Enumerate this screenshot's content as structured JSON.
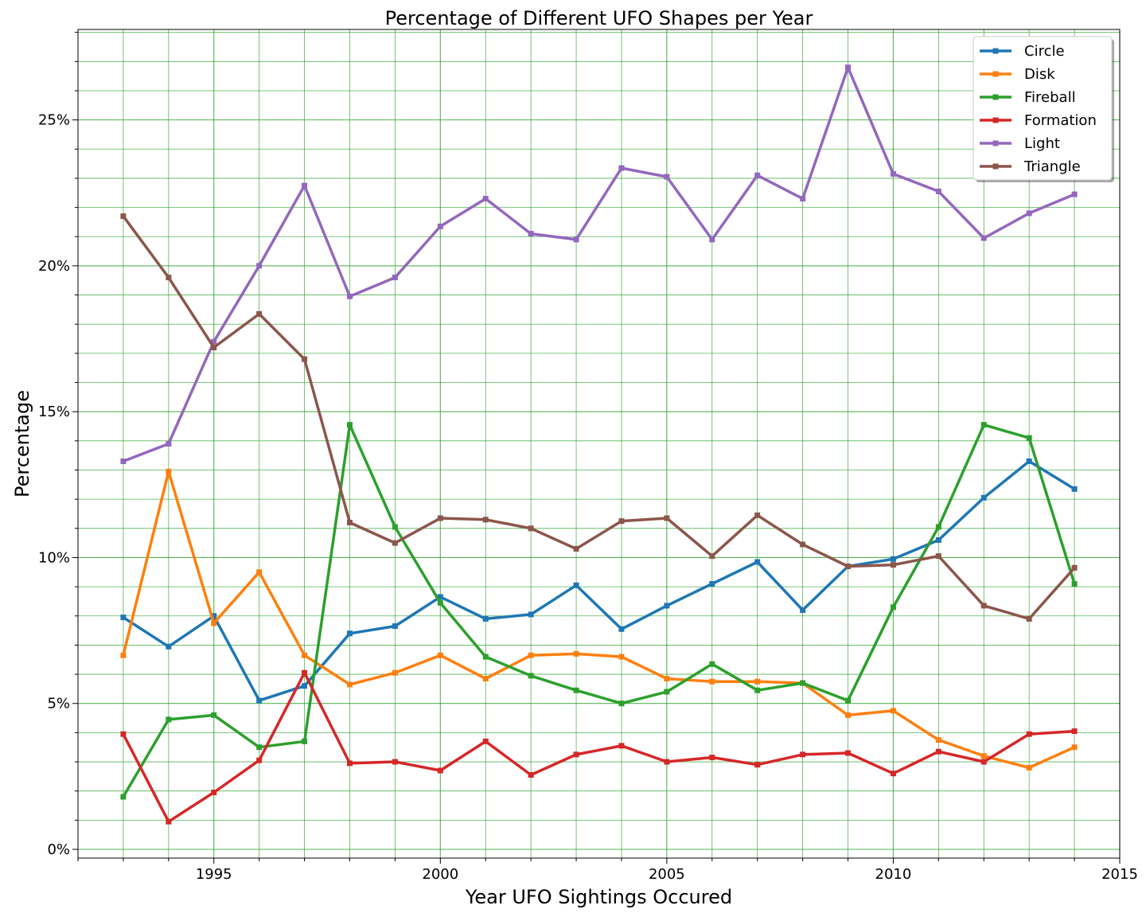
{
  "chart_data": {
    "type": "line",
    "title": "Percentage of Different UFO Shapes per Year",
    "xlabel": "Year UFO Sightings Occured",
    "ylabel": "Percentage",
    "xlim": [
      1992,
      2015
    ],
    "ylim": [
      -0.3,
      28.1
    ],
    "x_ticks": [
      1995,
      2000,
      2005,
      2010,
      2015
    ],
    "x_tick_labels": [
      "1995",
      "2000",
      "2005",
      "2010",
      "2015"
    ],
    "y_ticks": [
      0,
      5,
      10,
      15,
      20,
      25
    ],
    "y_tick_labels": [
      "0%",
      "5%",
      "10%",
      "15%",
      "20%",
      "25%"
    ],
    "grid": true,
    "grid_color": "#2ca02c",
    "legend_position": "top-right",
    "x": [
      1993,
      1994,
      1995,
      1996,
      1997,
      1998,
      1999,
      2000,
      2001,
      2002,
      2003,
      2004,
      2005,
      2006,
      2007,
      2008,
      2009,
      2010,
      2011,
      2012,
      2013,
      2014
    ],
    "series": [
      {
        "name": "Circle",
        "color": "#1f77b4",
        "values": [
          7.95,
          6.95,
          8.0,
          5.1,
          5.6,
          7.4,
          7.65,
          8.65,
          7.9,
          8.05,
          9.05,
          7.55,
          8.35,
          9.1,
          9.85,
          8.2,
          9.7,
          9.95,
          10.6,
          12.05,
          13.3,
          12.35
        ]
      },
      {
        "name": "Disk",
        "color": "#ff7f0e",
        "values": [
          6.65,
          12.95,
          7.75,
          9.5,
          6.65,
          5.65,
          6.05,
          6.65,
          5.85,
          6.65,
          6.7,
          6.6,
          5.85,
          5.75,
          5.75,
          5.7,
          4.6,
          4.75,
          3.75,
          3.2,
          2.8,
          3.5
        ]
      },
      {
        "name": "Fireball",
        "color": "#2ca02c",
        "values": [
          1.8,
          4.45,
          4.6,
          3.5,
          3.7,
          14.55,
          11.05,
          8.45,
          6.6,
          5.95,
          5.45,
          5.0,
          5.4,
          6.35,
          5.45,
          5.7,
          5.1,
          8.3,
          11.05,
          14.55,
          14.1,
          9.1
        ]
      },
      {
        "name": "Formation",
        "color": "#d62728",
        "values": [
          3.95,
          0.95,
          1.95,
          3.05,
          6.05,
          2.95,
          3.0,
          2.7,
          3.7,
          2.55,
          3.25,
          3.55,
          3.0,
          3.15,
          2.9,
          3.25,
          3.3,
          2.6,
          3.35,
          3.0,
          3.95,
          4.05
        ]
      },
      {
        "name": "Light",
        "color": "#9467bd",
        "values": [
          13.3,
          13.9,
          17.4,
          20.0,
          22.75,
          18.95,
          19.6,
          21.35,
          22.3,
          21.1,
          20.9,
          23.35,
          23.05,
          20.9,
          23.1,
          22.3,
          26.8,
          23.15,
          22.55,
          20.95,
          21.8,
          22.45
        ]
      },
      {
        "name": "Triangle",
        "color": "#8c564b",
        "values": [
          21.7,
          19.6,
          17.2,
          18.35,
          16.8,
          11.2,
          10.5,
          11.35,
          11.3,
          11.0,
          10.3,
          11.25,
          11.35,
          10.05,
          11.45,
          10.45,
          9.7,
          9.75,
          10.05,
          8.35,
          7.9,
          9.65
        ]
      }
    ]
  }
}
